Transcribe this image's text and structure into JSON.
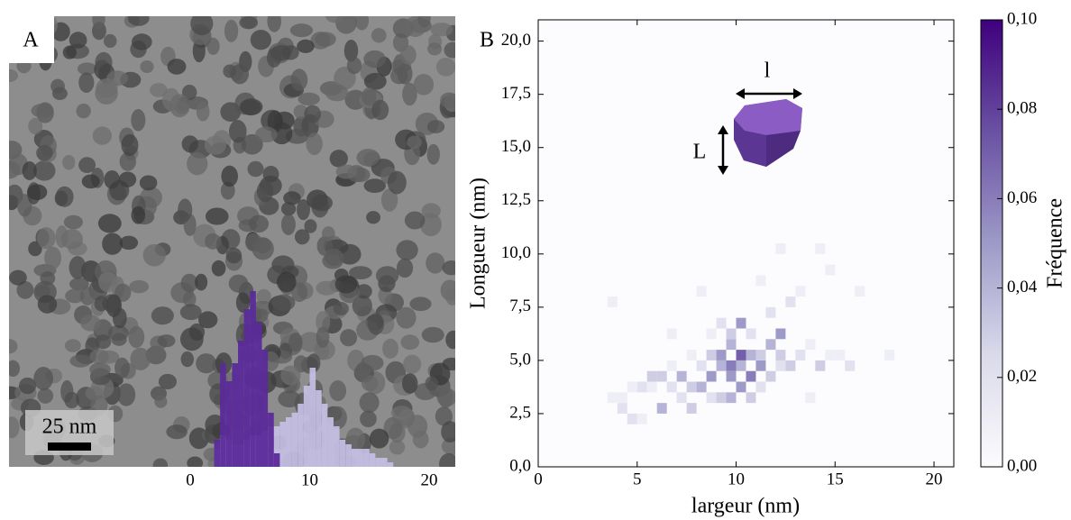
{
  "chart_data": [
    {
      "type": "histogram",
      "panel_label": "A",
      "scale_bar_label": "25 nm",
      "bins": [
        2.0,
        2.5,
        3.0,
        3.5,
        4.0,
        4.5,
        5.0,
        5.5,
        6.0,
        6.5,
        7.0,
        7.5,
        8.0,
        8.5,
        9.0,
        9.5,
        10.0,
        10.5,
        11.0,
        11.5,
        12.0,
        12.5,
        13.0,
        13.5,
        14.0,
        14.5,
        15.0,
        15.5,
        16.0,
        16.5,
        17.0
      ],
      "series": [
        {
          "color": "#c6c0e4",
          "values": [
            4,
            7,
            6,
            5,
            5,
            6,
            7,
            7,
            8,
            9,
            9,
            10,
            11,
            12,
            14,
            18,
            22,
            17,
            14,
            11,
            9,
            6,
            5,
            4,
            4,
            4,
            3,
            2,
            2,
            1
          ]
        },
        {
          "color": "#5b2a9a",
          "values": [
            6,
            23,
            19,
            23,
            28,
            35,
            39,
            32,
            26,
            12,
            3,
            0,
            0,
            0,
            0,
            0,
            0,
            0,
            0,
            0,
            0,
            0,
            0,
            0,
            0,
            0,
            0,
            0,
            0,
            0
          ]
        }
      ],
      "xlim": [
        0,
        20
      ],
      "xticks": [
        0,
        10,
        20
      ]
    },
    {
      "type": "heatmap",
      "panel_label": "B",
      "xlabel": "largeur (nm)",
      "ylabel": "Longueur (nm)",
      "colorbar_label": "Fréquence",
      "inset_labels": [
        "l",
        "L"
      ],
      "xlim": [
        0,
        21
      ],
      "ylim": [
        0,
        21
      ],
      "xticks": [
        0,
        5,
        10,
        15,
        20
      ],
      "yticks": [
        {
          "value": 0,
          "label": "0,0"
        },
        {
          "value": 2.5,
          "label": "2,5"
        },
        {
          "value": 5,
          "label": "5,0"
        },
        {
          "value": 7.5,
          "label": "7,5"
        },
        {
          "value": 10,
          "label": "10,0"
        },
        {
          "value": 12.5,
          "label": "12,5"
        },
        {
          "value": 15,
          "label": "15,0"
        },
        {
          "value": 17.5,
          "label": "17,5"
        },
        {
          "value": 20,
          "label": "20,0"
        }
      ],
      "bin_size": 0.5,
      "clim": [
        0,
        0.1
      ],
      "cticks": [
        {
          "value": 0,
          "label": "0,00"
        },
        {
          "value": 0.02,
          "label": "0,02"
        },
        {
          "value": 0.04,
          "label": "0,04"
        },
        {
          "value": 0.06,
          "label": "0,06"
        },
        {
          "value": 0.08,
          "label": "0,08"
        },
        {
          "value": 0.1,
          "label": "0,10"
        }
      ],
      "colormap": [
        "#fcfbfd",
        "#dadaeb",
        "#9e9ac8",
        "#6a51a3",
        "#3f007d"
      ],
      "cells": [
        {
          "x": 3.5,
          "y": 7.5,
          "value": 0.01
        },
        {
          "x": 3.5,
          "y": 3.0,
          "value": 0.01
        },
        {
          "x": 4.0,
          "y": 2.5,
          "value": 0.02
        },
        {
          "x": 4.0,
          "y": 3.0,
          "value": 0.01
        },
        {
          "x": 4.5,
          "y": 2.0,
          "value": 0.02
        },
        {
          "x": 4.5,
          "y": 3.5,
          "value": 0.01
        },
        {
          "x": 5.0,
          "y": 2.0,
          "value": 0.01
        },
        {
          "x": 5.0,
          "y": 3.5,
          "value": 0.02
        },
        {
          "x": 5.5,
          "y": 3.5,
          "value": 0.01
        },
        {
          "x": 5.5,
          "y": 4.0,
          "value": 0.03
        },
        {
          "x": 6.0,
          "y": 2.5,
          "value": 0.04
        },
        {
          "x": 6.0,
          "y": 4.0,
          "value": 0.03
        },
        {
          "x": 6.5,
          "y": 3.5,
          "value": 0.02
        },
        {
          "x": 6.5,
          "y": 4.5,
          "value": 0.01
        },
        {
          "x": 6.5,
          "y": 6.0,
          "value": 0.01
        },
        {
          "x": 7.0,
          "y": 3.0,
          "value": 0.02
        },
        {
          "x": 7.0,
          "y": 4.0,
          "value": 0.04
        },
        {
          "x": 7.5,
          "y": 2.5,
          "value": 0.03
        },
        {
          "x": 7.5,
          "y": 3.5,
          "value": 0.03
        },
        {
          "x": 7.5,
          "y": 5.0,
          "value": 0.01
        },
        {
          "x": 8.0,
          "y": 3.5,
          "value": 0.04
        },
        {
          "x": 8.0,
          "y": 4.5,
          "value": 0.02
        },
        {
          "x": 8.0,
          "y": 8.0,
          "value": 0.01
        },
        {
          "x": 8.5,
          "y": 3.0,
          "value": 0.02
        },
        {
          "x": 8.5,
          "y": 4.0,
          "value": 0.05
        },
        {
          "x": 8.5,
          "y": 5.0,
          "value": 0.03
        },
        {
          "x": 8.5,
          "y": 6.0,
          "value": 0.01
        },
        {
          "x": 9.0,
          "y": 3.0,
          "value": 0.03
        },
        {
          "x": 9.0,
          "y": 4.5,
          "value": 0.04
        },
        {
          "x": 9.0,
          "y": 5.0,
          "value": 0.05
        },
        {
          "x": 9.0,
          "y": 6.5,
          "value": 0.02
        },
        {
          "x": 9.5,
          "y": 3.0,
          "value": 0.04
        },
        {
          "x": 9.5,
          "y": 4.0,
          "value": 0.05
        },
        {
          "x": 9.5,
          "y": 4.5,
          "value": 0.06
        },
        {
          "x": 9.5,
          "y": 5.5,
          "value": 0.04
        },
        {
          "x": 9.5,
          "y": 6.0,
          "value": 0.03
        },
        {
          "x": 10.0,
          "y": 3.5,
          "value": 0.05
        },
        {
          "x": 10.0,
          "y": 4.5,
          "value": 0.04
        },
        {
          "x": 10.0,
          "y": 5.0,
          "value": 0.07
        },
        {
          "x": 10.0,
          "y": 6.5,
          "value": 0.05
        },
        {
          "x": 10.5,
          "y": 3.0,
          "value": 0.03
        },
        {
          "x": 10.5,
          "y": 4.0,
          "value": 0.06
        },
        {
          "x": 10.5,
          "y": 5.0,
          "value": 0.04
        },
        {
          "x": 10.5,
          "y": 6.0,
          "value": 0.02
        },
        {
          "x": 11.0,
          "y": 3.5,
          "value": 0.02
        },
        {
          "x": 11.0,
          "y": 4.5,
          "value": 0.05
        },
        {
          "x": 11.0,
          "y": 5.0,
          "value": 0.03
        },
        {
          "x": 11.0,
          "y": 8.5,
          "value": 0.01
        },
        {
          "x": 11.5,
          "y": 4.0,
          "value": 0.03
        },
        {
          "x": 11.5,
          "y": 5.5,
          "value": 0.04
        },
        {
          "x": 11.5,
          "y": 7.0,
          "value": 0.02
        },
        {
          "x": 12.0,
          "y": 4.5,
          "value": 0.02
        },
        {
          "x": 12.0,
          "y": 6.0,
          "value": 0.05
        },
        {
          "x": 12.0,
          "y": 5.0,
          "value": 0.03
        },
        {
          "x": 12.5,
          "y": 4.5,
          "value": 0.03
        },
        {
          "x": 12.5,
          "y": 7.5,
          "value": 0.02
        },
        {
          "x": 13.0,
          "y": 5.0,
          "value": 0.02
        },
        {
          "x": 13.0,
          "y": 8.0,
          "value": 0.01
        },
        {
          "x": 13.5,
          "y": 3.0,
          "value": 0.01
        },
        {
          "x": 13.5,
          "y": 5.5,
          "value": 0.01
        },
        {
          "x": 14.0,
          "y": 4.5,
          "value": 0.03
        },
        {
          "x": 14.0,
          "y": 10.0,
          "value": 0.01
        },
        {
          "x": 14.5,
          "y": 5.0,
          "value": 0.01
        },
        {
          "x": 14.5,
          "y": 9.0,
          "value": 0.01
        },
        {
          "x": 15.0,
          "y": 5.0,
          "value": 0.01
        },
        {
          "x": 15.5,
          "y": 4.5,
          "value": 0.02
        },
        {
          "x": 16.0,
          "y": 8.0,
          "value": 0.01
        },
        {
          "x": 17.5,
          "y": 5.0,
          "value": 0.01
        },
        {
          "x": 12.0,
          "y": 10.0,
          "value": 0.01
        }
      ]
    }
  ]
}
